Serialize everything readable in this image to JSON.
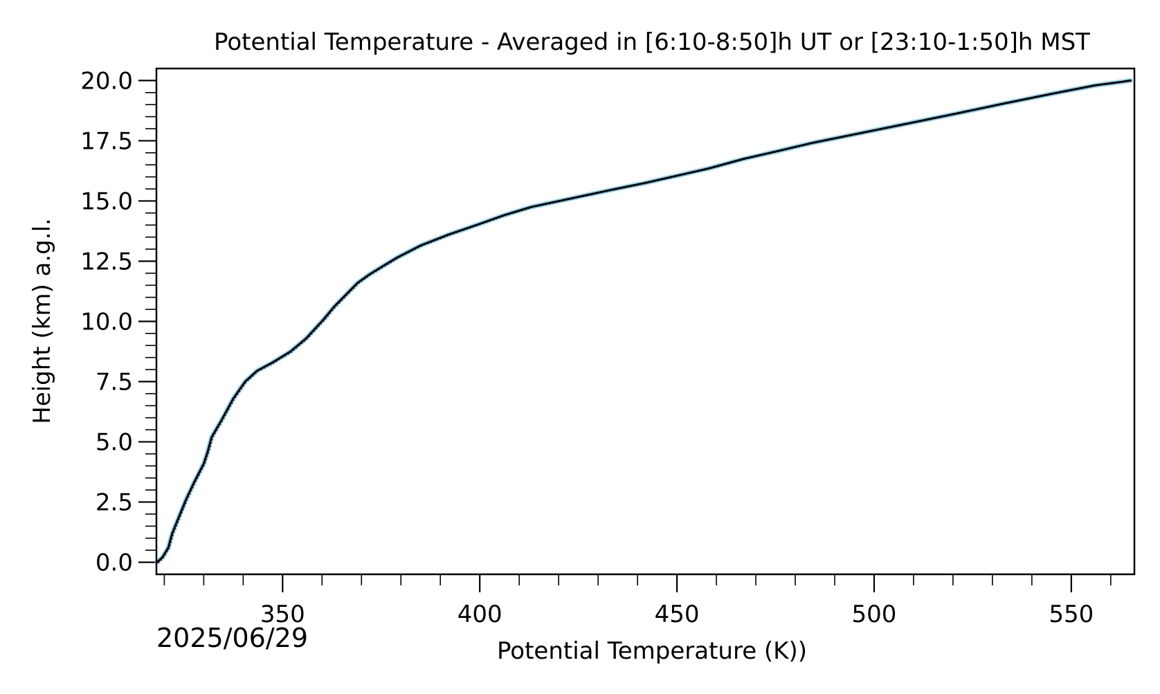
{
  "chart_data": {
    "type": "line",
    "title": "Potential Temperature - Averaged in [6:10-8:50]h UT or [23:10-1:50]h MST",
    "xlabel": "Potential Temperature (K))",
    "ylabel": "Height (km) a.g.l.",
    "date": "2025/06/29",
    "xlim": [
      318,
      566
    ],
    "ylim": [
      -0.5,
      20.5
    ],
    "x_ticks": [
      350,
      400,
      450,
      500,
      550
    ],
    "x_tick_labels": [
      "350",
      "400",
      "450",
      "500",
      "550"
    ],
    "y_ticks": [
      0.0,
      2.5,
      5.0,
      7.5,
      10.0,
      12.5,
      15.0,
      17.5,
      20.0
    ],
    "y_tick_labels": [
      "0.0",
      "2.5",
      "5.0",
      "7.5",
      "10.0",
      "12.5",
      "15.0",
      "17.5",
      "20.0"
    ],
    "grid": false,
    "series": [
      {
        "color": "#000000",
        "band_color": "#87CEEB",
        "x": [
          318.2,
          319.5,
          321.0,
          322.0,
          323.5,
          325.5,
          327.5,
          330.0,
          331.0,
          332.0,
          334.5,
          337.5,
          340.5,
          343.5,
          347.5,
          352.0,
          356.0,
          358.5,
          360.5,
          363.0,
          366.0,
          369.0,
          372.0,
          375.5,
          379.0,
          385.0,
          392.0,
          400.0,
          406.0,
          413.0,
          423.0,
          433.0,
          442.0,
          450.0,
          458.0,
          467.0,
          475.0,
          484.0,
          496.0,
          508.0,
          520.0,
          533.0,
          545.0,
          556.0,
          563.0,
          565.0
        ],
        "y": [
          0.0,
          0.2,
          0.6,
          1.2,
          1.8,
          2.6,
          3.3,
          4.1,
          4.6,
          5.2,
          5.9,
          6.8,
          7.5,
          7.95,
          8.3,
          8.75,
          9.3,
          9.75,
          10.1,
          10.6,
          11.1,
          11.6,
          11.95,
          12.3,
          12.65,
          13.15,
          13.6,
          14.05,
          14.4,
          14.75,
          15.1,
          15.45,
          15.75,
          16.05,
          16.35,
          16.75,
          17.05,
          17.4,
          17.8,
          18.2,
          18.6,
          19.05,
          19.45,
          19.8,
          19.95,
          20.0
        ]
      }
    ]
  }
}
